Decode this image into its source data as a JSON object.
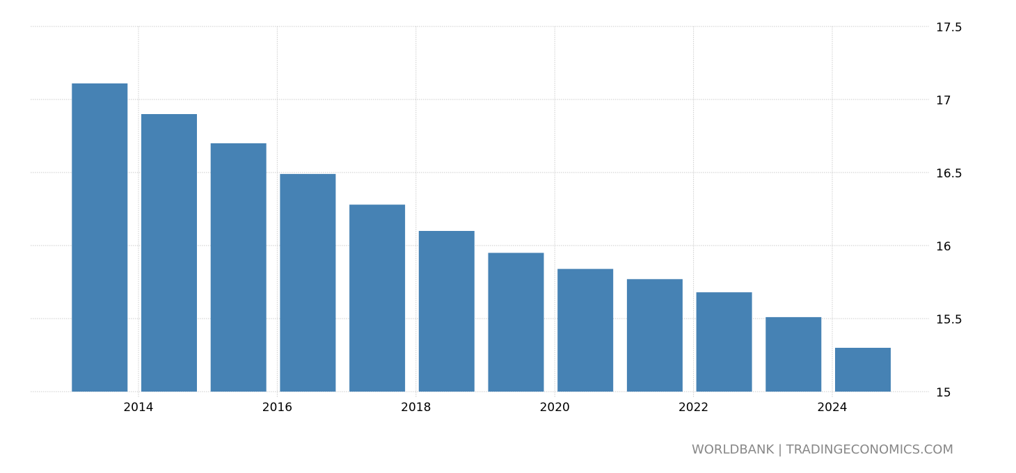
{
  "chart_data": {
    "type": "bar",
    "categories": [
      "2013",
      "2014",
      "2015",
      "2016",
      "2017",
      "2018",
      "2019",
      "2020",
      "2021",
      "2022",
      "2023",
      "2024"
    ],
    "values": [
      17.11,
      16.9,
      16.7,
      16.49,
      16.28,
      16.1,
      15.95,
      15.84,
      15.77,
      15.68,
      15.51,
      15.3
    ],
    "title": "",
    "xlabel": "",
    "ylabel": "",
    "ylim": [
      15,
      17.5
    ],
    "yticks": [
      "15",
      "15.5",
      "16",
      "16.5",
      "17",
      "17.5"
    ],
    "xticks": [
      "2014",
      "2016",
      "2018",
      "2020",
      "2022",
      "2024"
    ],
    "y_axis_position": "right",
    "grid": true,
    "bar_color": "#4682b4",
    "grid_color": "#cccccc"
  },
  "source": "WORLDBANK | TRADINGECONOMICS.COM"
}
